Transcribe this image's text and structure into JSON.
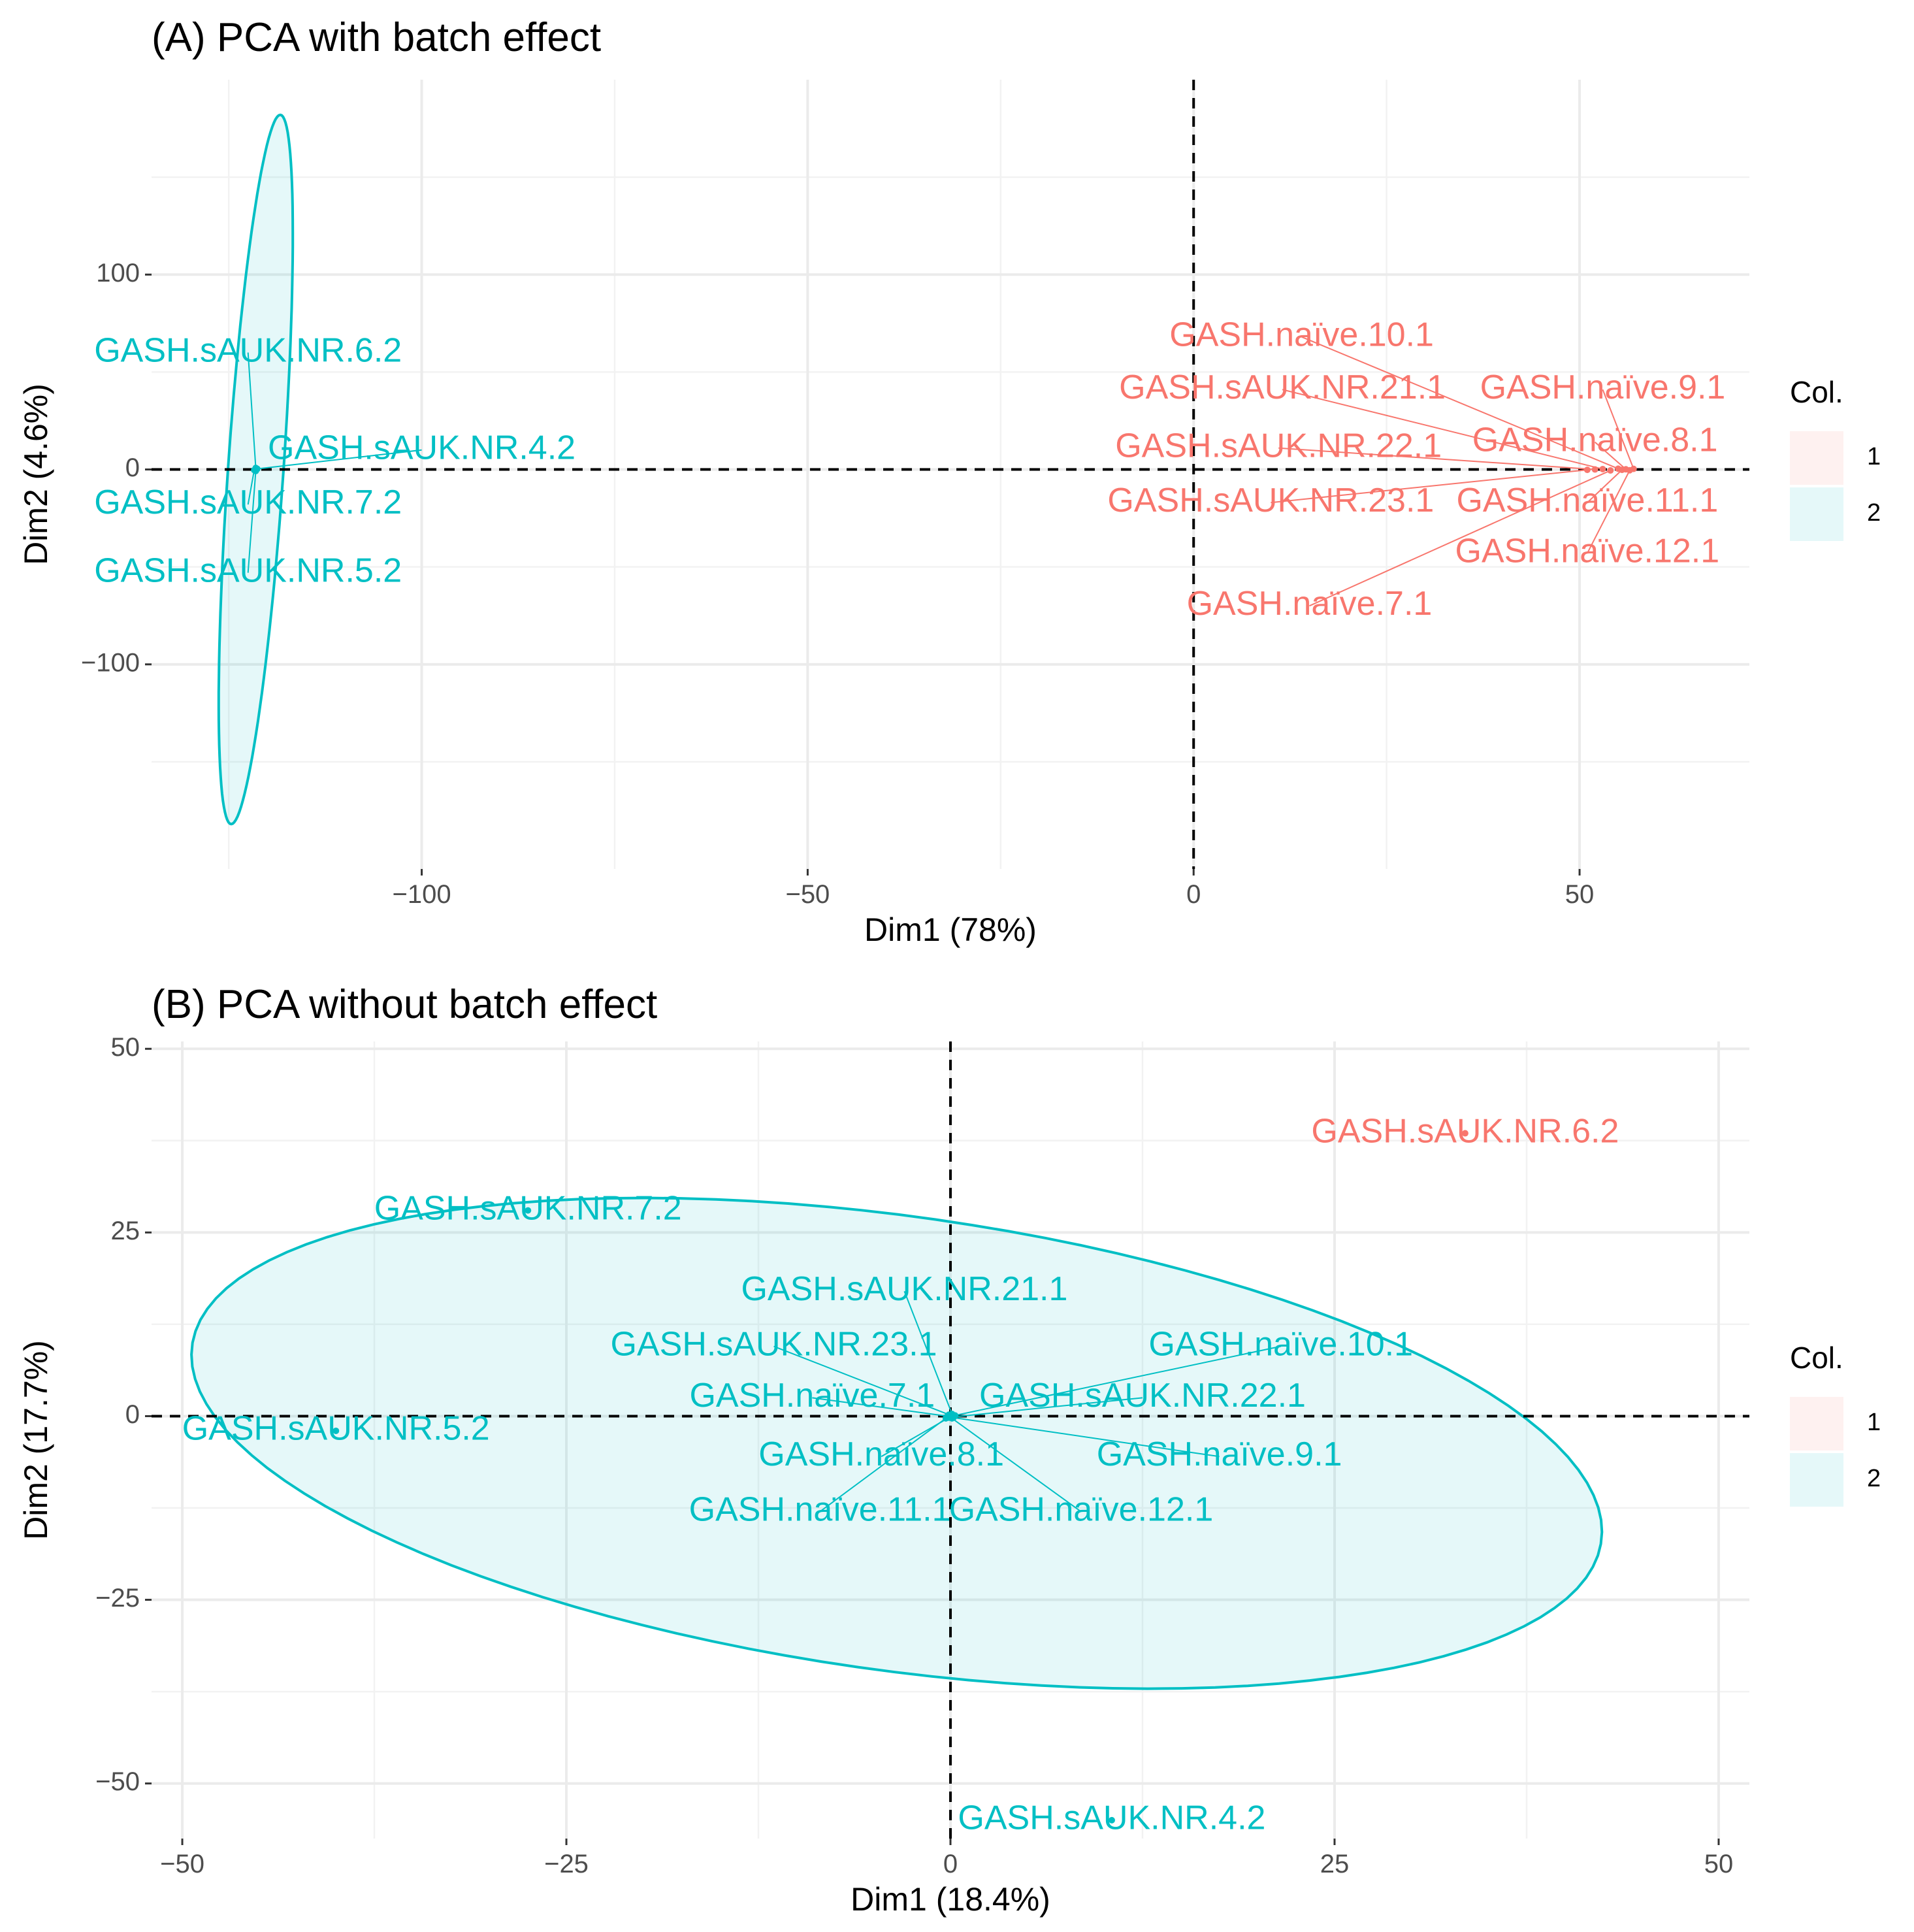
{
  "colors": {
    "group1": "#F8766D",
    "group2": "#00BFC4"
  },
  "chart_data": [
    {
      "type": "scatter",
      "title": "(A) PCA with batch effect",
      "xlabel": "Dim1 (78%)",
      "ylabel": "Dim2 (4.6%)",
      "xlim": [
        -135,
        72
      ],
      "ylim": [
        -205,
        200
      ],
      "xticks": [
        -100,
        -50,
        0,
        50
      ],
      "xtick_labels": [
        "−100",
        "−50",
        "0",
        "50"
      ],
      "yticks": [
        -100,
        0,
        100
      ],
      "ytick_labels": [
        "−100",
        "0",
        "100"
      ],
      "legend": {
        "title": "Col.",
        "entries": [
          "1",
          "2"
        ]
      },
      "ellipse": {
        "group": "2",
        "center": [
          -121.5,
          0
        ],
        "rx": 3.6,
        "ry": 182,
        "angle": -1
      },
      "points": [
        {
          "label": "GASH.sAUK.NR.6.2",
          "group": "2",
          "x": -121.5,
          "y": 0.8,
          "lx": -122.5,
          "ly": 60
        },
        {
          "label": "GASH.sAUK.NR.4.2",
          "group": "2",
          "x": -121.3,
          "y": 0.3,
          "lx": -100,
          "ly": 10
        },
        {
          "label": "GASH.sAUK.NR.7.2",
          "group": "2",
          "x": -121.7,
          "y": -0.3,
          "lx": -122.5,
          "ly": -18
        },
        {
          "label": "GASH.sAUK.NR.5.2",
          "group": "2",
          "x": -121.5,
          "y": -0.8,
          "lx": -122.5,
          "ly": -53
        },
        {
          "label": "GASH.naïve.10.1",
          "group": "1",
          "x": 55,
          "y": 0.4,
          "lx": 14,
          "ly": 68
        },
        {
          "label": "GASH.sAUK.NR.21.1",
          "group": "1",
          "x": 53,
          "y": 0.2,
          "lx": 11.5,
          "ly": 41
        },
        {
          "label": "GASH.naïve.9.1",
          "group": "1",
          "x": 57,
          "y": 0.3,
          "lx": 53,
          "ly": 41
        },
        {
          "label": "GASH.sAUK.NR.22.1",
          "group": "1",
          "x": 52,
          "y": 0,
          "lx": 11,
          "ly": 11
        },
        {
          "label": "GASH.naïve.8.1",
          "group": "1",
          "x": 56,
          "y": 0.1,
          "lx": 52,
          "ly": 14
        },
        {
          "label": "GASH.sAUK.NR.23.1",
          "group": "1",
          "x": 51,
          "y": -0.2,
          "lx": 10,
          "ly": -17
        },
        {
          "label": "GASH.naïve.11.1",
          "group": "1",
          "x": 55.5,
          "y": -0.2,
          "lx": 51,
          "ly": -17
        },
        {
          "label": "GASH.naïve.12.1",
          "group": "1",
          "x": 56.5,
          "y": -0.4,
          "lx": 51,
          "ly": -43
        },
        {
          "label": "GASH.naïve.7.1",
          "group": "1",
          "x": 54,
          "y": -0.5,
          "lx": 15,
          "ly": -70
        }
      ]
    },
    {
      "type": "scatter",
      "title": "(B) PCA without batch effect",
      "xlabel": "Dim1 (18.4%)",
      "ylabel": "Dim2 (17.7%)",
      "xlim": [
        -52,
        52
      ],
      "ylim": [
        -57.5,
        51
      ],
      "xticks": [
        -50,
        -25,
        0,
        25,
        50
      ],
      "xtick_labels": [
        "−50",
        "−25",
        "0",
        "25",
        "50"
      ],
      "yticks": [
        -50,
        -25,
        0,
        25,
        50
      ],
      "ytick_labels": [
        "−50",
        "−25",
        "0",
        "25",
        "50"
      ],
      "legend": {
        "title": "Col.",
        "entries": [
          "1",
          "2"
        ]
      },
      "ellipse": {
        "group": "2",
        "center": [
          -3.5,
          -3.7
        ],
        "rx": 48.5,
        "ry": 29.5,
        "angle": -24
      },
      "points": [
        {
          "label": "GASH.sAUK.NR.6.2",
          "group": "1",
          "x": 33.5,
          "y": 38.5,
          "lx": 33.5,
          "ly": 38.5
        },
        {
          "label": "GASH.sAUK.NR.7.2",
          "group": "2",
          "x": -27.5,
          "y": 28,
          "lx": -27.5,
          "ly": 28
        },
        {
          "label": "GASH.sAUK.NR.5.2",
          "group": "2",
          "x": -40,
          "y": -2,
          "lx": -40,
          "ly": -2
        },
        {
          "label": "GASH.sAUK.NR.4.2",
          "group": "2",
          "x": 10.5,
          "y": -55,
          "lx": 10.5,
          "ly": -55
        },
        {
          "label": "GASH.sAUK.NR.21.1",
          "group": "2",
          "x": 0.1,
          "y": 0.3,
          "lx": -3,
          "ly": 17
        },
        {
          "label": "GASH.sAUK.NR.23.1",
          "group": "2",
          "x": -0.1,
          "y": 0.2,
          "lx": -11.5,
          "ly": 9.5
        },
        {
          "label": "GASH.naïve.10.1",
          "group": "2",
          "x": 0.3,
          "y": 0.1,
          "lx": 21.5,
          "ly": 9.5
        },
        {
          "label": "GASH.naïve.7.1",
          "group": "2",
          "x": -0.2,
          "y": 0,
          "lx": -9,
          "ly": 2.5
        },
        {
          "label": "GASH.sAUK.NR.22.1",
          "group": "2",
          "x": 0.2,
          "y": -0.1,
          "lx": 12.5,
          "ly": 2.5
        },
        {
          "label": "GASH.naïve.8.1",
          "group": "2",
          "x": -0.1,
          "y": -0.2,
          "lx": -4.5,
          "ly": -5.5
        },
        {
          "label": "GASH.naïve.9.1",
          "group": "2",
          "x": 0.2,
          "y": -0.2,
          "lx": 17.5,
          "ly": -5.5
        },
        {
          "label": "GASH.naïve.11.1",
          "group": "2",
          "x": -0.3,
          "y": -0.3,
          "lx": -8.5,
          "ly": -13
        },
        {
          "label": "GASH.naïve.12.1",
          "group": "2",
          "x": 0.1,
          "y": -0.3,
          "lx": 8.5,
          "ly": -13
        }
      ]
    }
  ]
}
